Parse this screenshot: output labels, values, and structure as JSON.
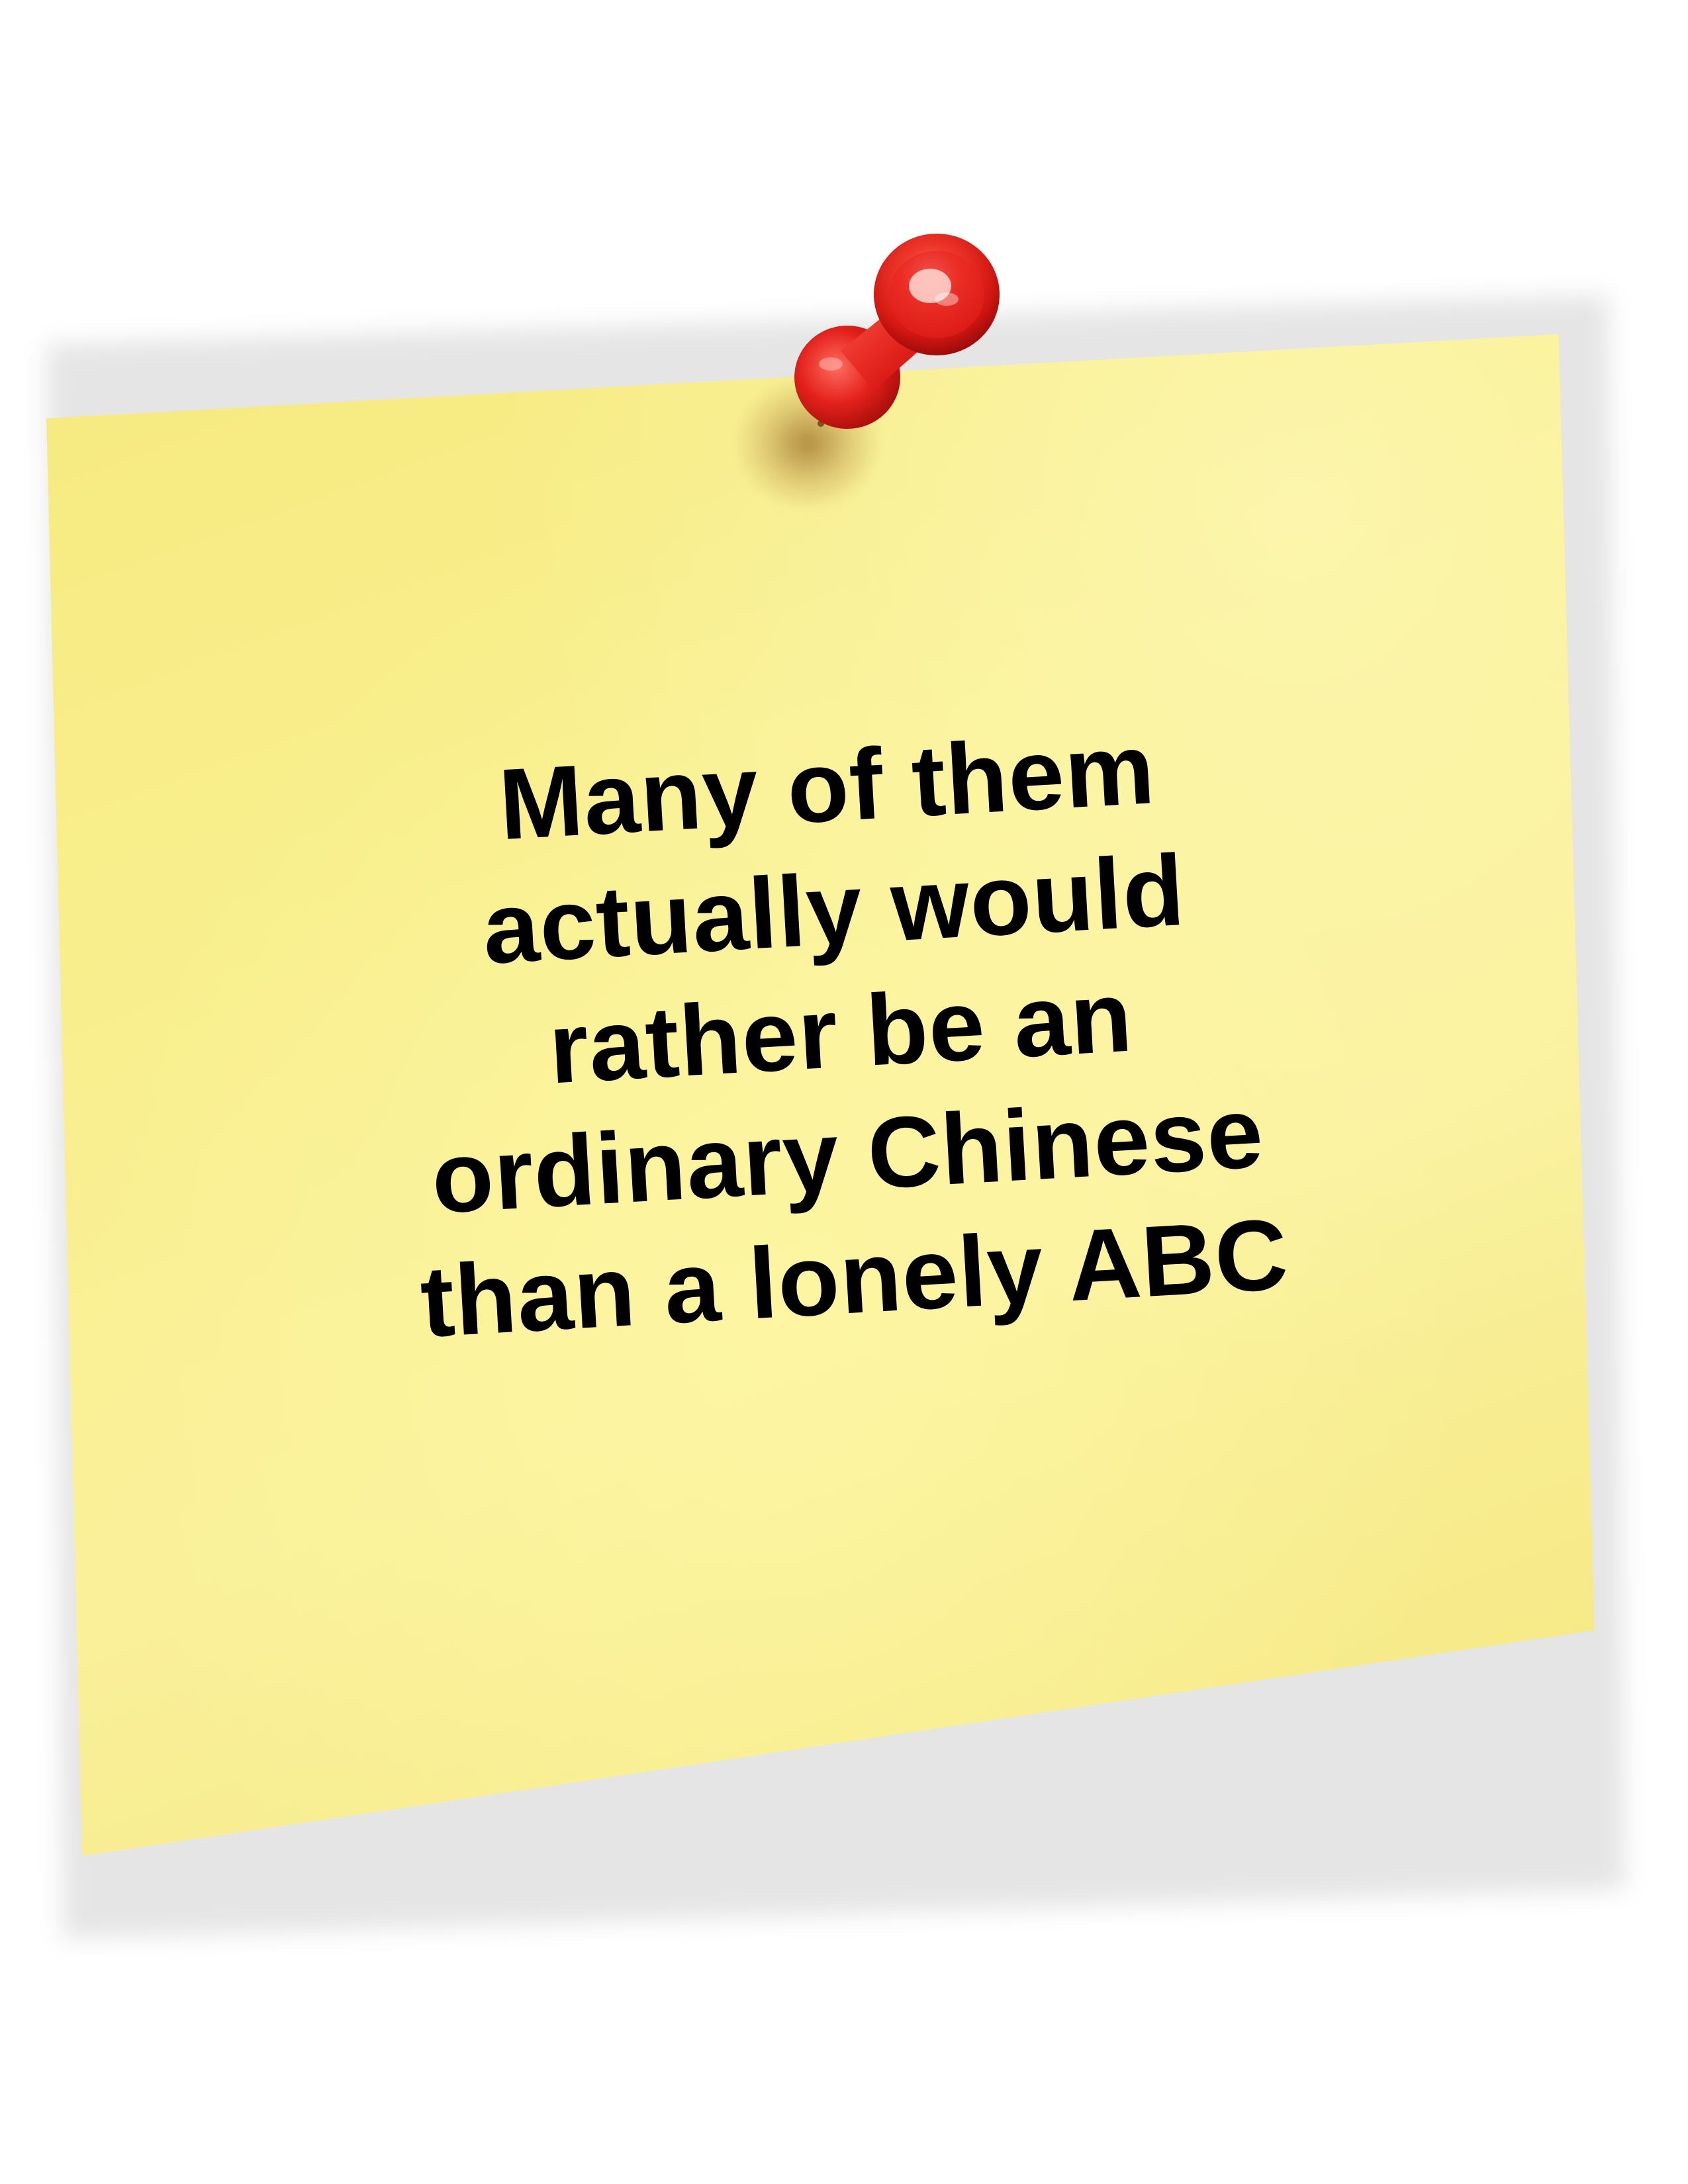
{
  "note": {
    "lines": [
      "Many of them",
      "actually would",
      "rather be an",
      "ordinary Chinese",
      "than a lonely ABC"
    ]
  },
  "colors": {
    "note_yellow": "#f9ef8f",
    "pin_red": "#e8231f",
    "text": "#000000"
  },
  "icons": {
    "pin": "pushpin-icon"
  }
}
